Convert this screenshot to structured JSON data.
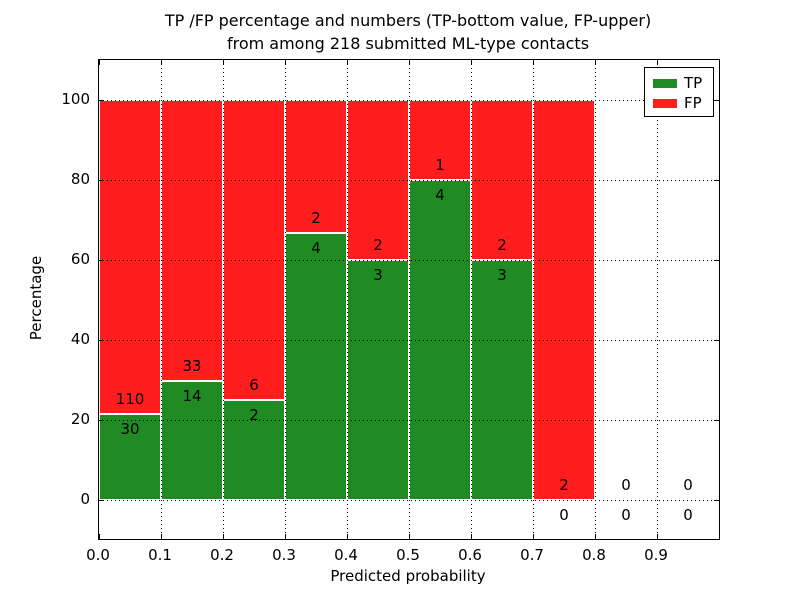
{
  "chart_data": {
    "type": "bar",
    "stacked": true,
    "normalized_to_percent": true,
    "title_line1": "TP /FP percentage and numbers (TP-bottom value, FP-upper)",
    "title_line2": "from among 218 submitted ML-type contacts",
    "xlabel": "Predicted probability",
    "ylabel": "Percentage",
    "total_contacts": 218,
    "x_bin_edges": [
      0.0,
      0.1,
      0.2,
      0.3,
      0.4,
      0.5,
      0.6,
      0.7,
      0.8,
      0.9,
      1.0
    ],
    "x_tick_labels": [
      "0.0",
      "0.1",
      "0.2",
      "0.3",
      "0.4",
      "0.5",
      "0.6",
      "0.7",
      "0.8",
      "0.9"
    ],
    "y_tick_values": [
      0,
      20,
      40,
      60,
      80,
      100
    ],
    "y_tick_labels": [
      "0",
      "20",
      "40",
      "60",
      "80",
      "100"
    ],
    "x_range": [
      0.0,
      1.0
    ],
    "y_range_pct": [
      -9.75,
      110
    ],
    "grid": "dotted",
    "grid_on": true,
    "bar_edge_color": "#ffffff",
    "series": [
      {
        "name": "TP",
        "color": "#1f8b22",
        "counts": [
          30,
          14,
          2,
          4,
          3,
          4,
          3,
          0,
          0,
          0
        ]
      },
      {
        "name": "FP",
        "color": "#ff1d1d",
        "counts": [
          110,
          33,
          6,
          2,
          2,
          1,
          2,
          2,
          0,
          0
        ]
      }
    ],
    "tp_percent_per_bin": [
      21.43,
      29.79,
      25.0,
      66.67,
      60.0,
      80.0,
      60.0,
      0.0,
      null,
      null
    ],
    "legend": {
      "position": "upper-right",
      "entries": [
        {
          "label": "TP",
          "color": "#1f8b22"
        },
        {
          "label": "FP",
          "color": "#ff1d1d"
        }
      ]
    }
  }
}
